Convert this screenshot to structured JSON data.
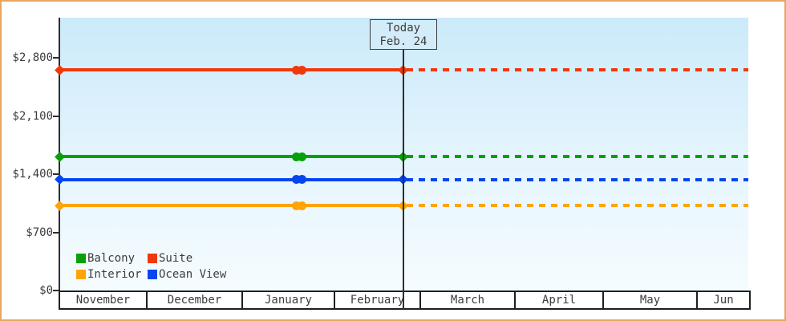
{
  "chart_data": {
    "type": "line",
    "title": "",
    "x_categories": [
      "November",
      "December",
      "January",
      "February",
      "March",
      "April",
      "May",
      "Jun"
    ],
    "y_tick_values": [
      0,
      700,
      1400,
      2100,
      2800
    ],
    "y_tick_labels": [
      "$0",
      "$700",
      "$1,400",
      "$2,100",
      "$2,800"
    ],
    "ylim": [
      0,
      3300
    ],
    "grid": false,
    "legend_position": "bottom-left inside plot",
    "today": {
      "line1": "Today",
      "line2": "Feb. 24"
    },
    "series": [
      {
        "name": "Suite",
        "color": "#f1380b",
        "value": 2655,
        "style": "solid with point markers until today, dotted flat projection after today"
      },
      {
        "name": "Balcony",
        "color": "#08a008",
        "value": 1610,
        "style": "solid with point markers until today, dotted flat projection after today"
      },
      {
        "name": "Ocean View",
        "color": "#0545f0",
        "value": 1335,
        "style": "solid with point markers until today, dotted flat projection after today"
      },
      {
        "name": "Interior",
        "color": "#ffa405",
        "value": 1020,
        "style": "solid with point markers until today, dotted flat projection after today"
      }
    ],
    "marker_points": [
      "series start (left axis)",
      "late January",
      "today (Feb. 24)"
    ],
    "legend": [
      {
        "label": "Balcony",
        "color": "#08a008"
      },
      {
        "label": "Suite",
        "color": "#f1380b"
      },
      {
        "label": "Interior",
        "color": "#ffa405"
      },
      {
        "label": "Ocean View",
        "color": "#0545f0"
      }
    ]
  }
}
